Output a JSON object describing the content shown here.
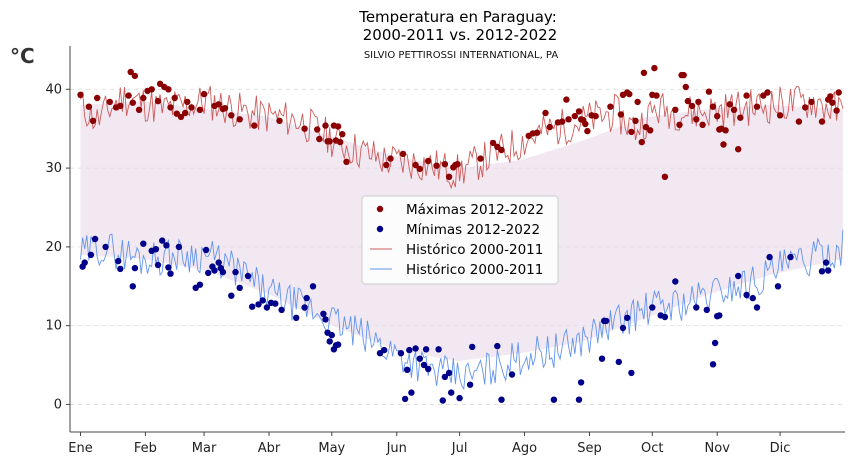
{
  "chart_data": {
    "type": "scatter",
    "title": "Temperatura en Paraguay:\n2000-2011 vs. 2012-2022",
    "subtitle": "SILVIO PETTIROSSI INTERNATIONAL, PA",
    "ylabel": "°C",
    "xlabel": "",
    "ylim": [
      -3.5,
      45.5
    ],
    "xlim": [
      -5,
      365
    ],
    "yticks": [
      0,
      10,
      20,
      30,
      40
    ],
    "month_ticks": [
      {
        "label": "Ene",
        "day": 0
      },
      {
        "label": "Feb",
        "day": 31
      },
      {
        "label": "Mar",
        "day": 59
      },
      {
        "label": "Abr",
        "day": 90
      },
      {
        "label": "May",
        "day": 120
      },
      {
        "label": "Jun",
        "day": 151
      },
      {
        "label": "Jul",
        "day": 181
      },
      {
        "label": "Ago",
        "day": 212
      },
      {
        "label": "Sep",
        "day": 243
      },
      {
        "label": "Oct",
        "day": 273
      },
      {
        "label": "Nov",
        "day": 304
      },
      {
        "label": "Dic",
        "day": 334
      }
    ],
    "grid": "horizontal dashed",
    "legend_position": "center",
    "band": {
      "color": "#f1e8f1",
      "upper": [
        [
          0,
          38
        ],
        [
          30,
          38.5
        ],
        [
          60,
          37.5
        ],
        [
          90,
          36.5
        ],
        [
          120,
          34
        ],
        [
          150,
          31.5
        ],
        [
          180,
          30
        ],
        [
          210,
          31
        ],
        [
          240,
          33.5
        ],
        [
          270,
          36.5
        ],
        [
          300,
          37.5
        ],
        [
          330,
          38
        ],
        [
          364,
          37.5
        ]
      ],
      "lower": [
        [
          0,
          19
        ],
        [
          30,
          18.5
        ],
        [
          60,
          17
        ],
        [
          90,
          14
        ],
        [
          120,
          10
        ],
        [
          150,
          7
        ],
        [
          180,
          5.5
        ],
        [
          210,
          6.5
        ],
        [
          240,
          8
        ],
        [
          270,
          11
        ],
        [
          300,
          14
        ],
        [
          330,
          16.5
        ],
        [
          364,
          18.5
        ]
      ]
    },
    "series": [
      {
        "name": "Máximas 2012-2022",
        "kind": "scatter",
        "color": "#8b0000",
        "points": [
          [
            0,
            39.3
          ],
          [
            4,
            37.8
          ],
          [
            6,
            36
          ],
          [
            8,
            38.9
          ],
          [
            14,
            38.4
          ],
          [
            17,
            37.7
          ],
          [
            19,
            37.9
          ],
          [
            23,
            39.2
          ],
          [
            24,
            42.2
          ],
          [
            25,
            38.3
          ],
          [
            26,
            41.7
          ],
          [
            28,
            37.4
          ],
          [
            30,
            38.9
          ],
          [
            32,
            39.8
          ],
          [
            34,
            40
          ],
          [
            37,
            38.5
          ],
          [
            38,
            40.7
          ],
          [
            40,
            40.3
          ],
          [
            42,
            40
          ],
          [
            43,
            37.7
          ],
          [
            45,
            38.9
          ],
          [
            46,
            36.9
          ],
          [
            48,
            36.5
          ],
          [
            50,
            37
          ],
          [
            51,
            38.4
          ],
          [
            53,
            37.7
          ],
          [
            57,
            37.4
          ],
          [
            59,
            39.4
          ],
          [
            64,
            37.9
          ],
          [
            66,
            38.1
          ],
          [
            68,
            37.5
          ],
          [
            69,
            37.6
          ],
          [
            72,
            36.7
          ],
          [
            76,
            36.2
          ],
          [
            83,
            35.4
          ],
          [
            95,
            36
          ],
          [
            107,
            35
          ],
          [
            113,
            34.9
          ],
          [
            114,
            33.7
          ],
          [
            117,
            35.4
          ],
          [
            118,
            33.4
          ],
          [
            119,
            33.4
          ],
          [
            121,
            35.4
          ],
          [
            122,
            33.5
          ],
          [
            123,
            35.3
          ],
          [
            124,
            33.3
          ],
          [
            125,
            34.3
          ],
          [
            127,
            30.8
          ],
          [
            146,
            30.4
          ],
          [
            148,
            31.2
          ],
          [
            154,
            31.8
          ],
          [
            160,
            30.4
          ],
          [
            162,
            29.9
          ],
          [
            166,
            30.9
          ],
          [
            170,
            30.3
          ],
          [
            174,
            30.5
          ],
          [
            176,
            28.9
          ],
          [
            178,
            30.1
          ],
          [
            179,
            30.4
          ],
          [
            180,
            30.5
          ],
          [
            191,
            31.2
          ],
          [
            197,
            33.2
          ],
          [
            199,
            32.7
          ],
          [
            201,
            32.3
          ],
          [
            214,
            34.1
          ],
          [
            216,
            34.4
          ],
          [
            218,
            34.5
          ],
          [
            222,
            37
          ],
          [
            224,
            35.2
          ],
          [
            228,
            35.8
          ],
          [
            230,
            35.9
          ],
          [
            232,
            38.7
          ],
          [
            233,
            36.2
          ],
          [
            236,
            36.6
          ],
          [
            238,
            37.2
          ],
          [
            239,
            36.2
          ],
          [
            240,
            36.1
          ],
          [
            241,
            35.6
          ],
          [
            242,
            34.7
          ],
          [
            244,
            36.7
          ],
          [
            246,
            36.6
          ],
          [
            253,
            37.8
          ],
          [
            258,
            36.8
          ],
          [
            259,
            39.3
          ],
          [
            261,
            39.6
          ],
          [
            262,
            39.4
          ],
          [
            263,
            34.6
          ],
          [
            265,
            36
          ],
          [
            266,
            38.4
          ],
          [
            268,
            33.3
          ],
          [
            269,
            42.1
          ],
          [
            270,
            35.2
          ],
          [
            272,
            34.8
          ],
          [
            273,
            39.3
          ],
          [
            274,
            42.7
          ],
          [
            275,
            39.2
          ],
          [
            279,
            28.9
          ],
          [
            284,
            37.4
          ],
          [
            286,
            35.5
          ],
          [
            287,
            41.8
          ],
          [
            288,
            41.8
          ],
          [
            289,
            40.3
          ],
          [
            290,
            38.5
          ],
          [
            292,
            37.9
          ],
          [
            294,
            36.2
          ],
          [
            295,
            38.4
          ],
          [
            297,
            35.5
          ],
          [
            300,
            39.7
          ],
          [
            302,
            37.8
          ],
          [
            304,
            36.6
          ],
          [
            305,
            34.9
          ],
          [
            306,
            35
          ],
          [
            307,
            33
          ],
          [
            308,
            34.8
          ],
          [
            310,
            38.1
          ],
          [
            312,
            37.4
          ],
          [
            314,
            32.4
          ],
          [
            315,
            36.4
          ],
          [
            318,
            39.2
          ],
          [
            323,
            37.8
          ],
          [
            326,
            39.2
          ],
          [
            328,
            39.6
          ],
          [
            334,
            36.7
          ],
          [
            343,
            35.9
          ],
          [
            346,
            37.7
          ],
          [
            349,
            38.4
          ],
          [
            354,
            35.9
          ],
          [
            357,
            38.7
          ],
          [
            358,
            39.1
          ],
          [
            359,
            38.3
          ],
          [
            361,
            37.3
          ],
          [
            362,
            39.6
          ]
        ]
      },
      {
        "name": "Mínimas 2012-2022",
        "kind": "scatter",
        "color": "#00008b",
        "points": [
          [
            1,
            17.5
          ],
          [
            2,
            18
          ],
          [
            5,
            19
          ],
          [
            7,
            21
          ],
          [
            12,
            20
          ],
          [
            18,
            18.2
          ],
          [
            19,
            17.2
          ],
          [
            25,
            15
          ],
          [
            26,
            17.3
          ],
          [
            30,
            20.4
          ],
          [
            34,
            19.5
          ],
          [
            36,
            19.7
          ],
          [
            37,
            17.7
          ],
          [
            39,
            20.8
          ],
          [
            41,
            20.2
          ],
          [
            42,
            17.4
          ],
          [
            43,
            16.6
          ],
          [
            47,
            20
          ],
          [
            55,
            14.8
          ],
          [
            57,
            15.2
          ],
          [
            60,
            19.6
          ],
          [
            61,
            16.7
          ],
          [
            63,
            17.5
          ],
          [
            64,
            17
          ],
          [
            66,
            18
          ],
          [
            67,
            17.3
          ],
          [
            68,
            16.8
          ],
          [
            72,
            13.8
          ],
          [
            74,
            16.8
          ],
          [
            76,
            14.8
          ],
          [
            80,
            16.3
          ],
          [
            82,
            12.4
          ],
          [
            85,
            12.7
          ],
          [
            87,
            13.2
          ],
          [
            89,
            12.3
          ],
          [
            91,
            12.9
          ],
          [
            93,
            12.8
          ],
          [
            96,
            12
          ],
          [
            103,
            11
          ],
          [
            107,
            12.3
          ],
          [
            108,
            13.5
          ],
          [
            111,
            15
          ],
          [
            116,
            11.5
          ],
          [
            117,
            10.8
          ],
          [
            118,
            9.1
          ],
          [
            119,
            8
          ],
          [
            120,
            8.8
          ],
          [
            121,
            7
          ],
          [
            122,
            7.5
          ],
          [
            123,
            7.6
          ],
          [
            143,
            6.5
          ],
          [
            145,
            6.9
          ],
          [
            153,
            6.5
          ],
          [
            155,
            0.7
          ],
          [
            156,
            4.4
          ],
          [
            157,
            6.9
          ],
          [
            158,
            1.5
          ],
          [
            160,
            7.1
          ],
          [
            162,
            5.8
          ],
          [
            164,
            5
          ],
          [
            165,
            7
          ],
          [
            166,
            4.5
          ],
          [
            171,
            7
          ],
          [
            173,
            0.5
          ],
          [
            174,
            3.5
          ],
          [
            176,
            4
          ],
          [
            177,
            1.5
          ],
          [
            181,
            0.8
          ],
          [
            186,
            2.5
          ],
          [
            187,
            7.3
          ],
          [
            199,
            7.4
          ],
          [
            201,
            0.6
          ],
          [
            206,
            3.8
          ],
          [
            226,
            0.6
          ],
          [
            238,
            0.6
          ],
          [
            239,
            2.8
          ],
          [
            249,
            5.8
          ],
          [
            250,
            10.6
          ],
          [
            251,
            10.6
          ],
          [
            257,
            5.4
          ],
          [
            259,
            9.7
          ],
          [
            261,
            11
          ],
          [
            263,
            4
          ],
          [
            273,
            12.3
          ],
          [
            277,
            11.3
          ],
          [
            279,
            11.1
          ],
          [
            284,
            15.6
          ],
          [
            294,
            12.3
          ],
          [
            299,
            12
          ],
          [
            302,
            5.1
          ],
          [
            303,
            7.8
          ],
          [
            304,
            11.2
          ],
          [
            305,
            11.3
          ],
          [
            314,
            16.3
          ],
          [
            318,
            13.9
          ],
          [
            321,
            13.5
          ],
          [
            323,
            12.3
          ],
          [
            329,
            18.7
          ],
          [
            333,
            15
          ],
          [
            339,
            18.7
          ],
          [
            354,
            16.9
          ],
          [
            356,
            18
          ],
          [
            357,
            17
          ]
        ]
      },
      {
        "name": "Histórico 2000-2011",
        "kind": "line",
        "color": "#cd5c5c",
        "anchors": [
          [
            0,
            38
          ],
          [
            8,
            36
          ],
          [
            20,
            39
          ],
          [
            40,
            37.5
          ],
          [
            60,
            38.5
          ],
          [
            80,
            37
          ],
          [
            105,
            36
          ],
          [
            125,
            33
          ],
          [
            145,
            31
          ],
          [
            165,
            30.5
          ],
          [
            180,
            29.5
          ],
          [
            200,
            32
          ],
          [
            220,
            34.5
          ],
          [
            240,
            36
          ],
          [
            255,
            37
          ],
          [
            265,
            35
          ],
          [
            275,
            37.5
          ],
          [
            290,
            37
          ],
          [
            310,
            37.5
          ],
          [
            330,
            38
          ],
          [
            350,
            38.5
          ],
          [
            364,
            37
          ]
        ],
        "amplitude": 2.4,
        "seed": 11
      },
      {
        "name": "Histórico 2000-2011",
        "kind": "line",
        "color": "#6495ed",
        "anchors": [
          [
            0,
            19
          ],
          [
            10,
            20
          ],
          [
            30,
            18.5
          ],
          [
            50,
            19
          ],
          [
            60,
            19
          ],
          [
            75,
            17
          ],
          [
            90,
            14
          ],
          [
            110,
            12
          ],
          [
            125,
            10
          ],
          [
            140,
            8
          ],
          [
            155,
            6
          ],
          [
            170,
            4
          ],
          [
            185,
            3.5
          ],
          [
            200,
            5
          ],
          [
            215,
            6.5
          ],
          [
            230,
            7
          ],
          [
            245,
            9
          ],
          [
            260,
            11
          ],
          [
            275,
            12.5
          ],
          [
            290,
            13
          ],
          [
            305,
            14.5
          ],
          [
            320,
            15.5
          ],
          [
            335,
            17.5
          ],
          [
            350,
            18.5
          ],
          [
            364,
            20
          ]
        ],
        "amplitude": 2.3,
        "seed": 29
      }
    ]
  }
}
